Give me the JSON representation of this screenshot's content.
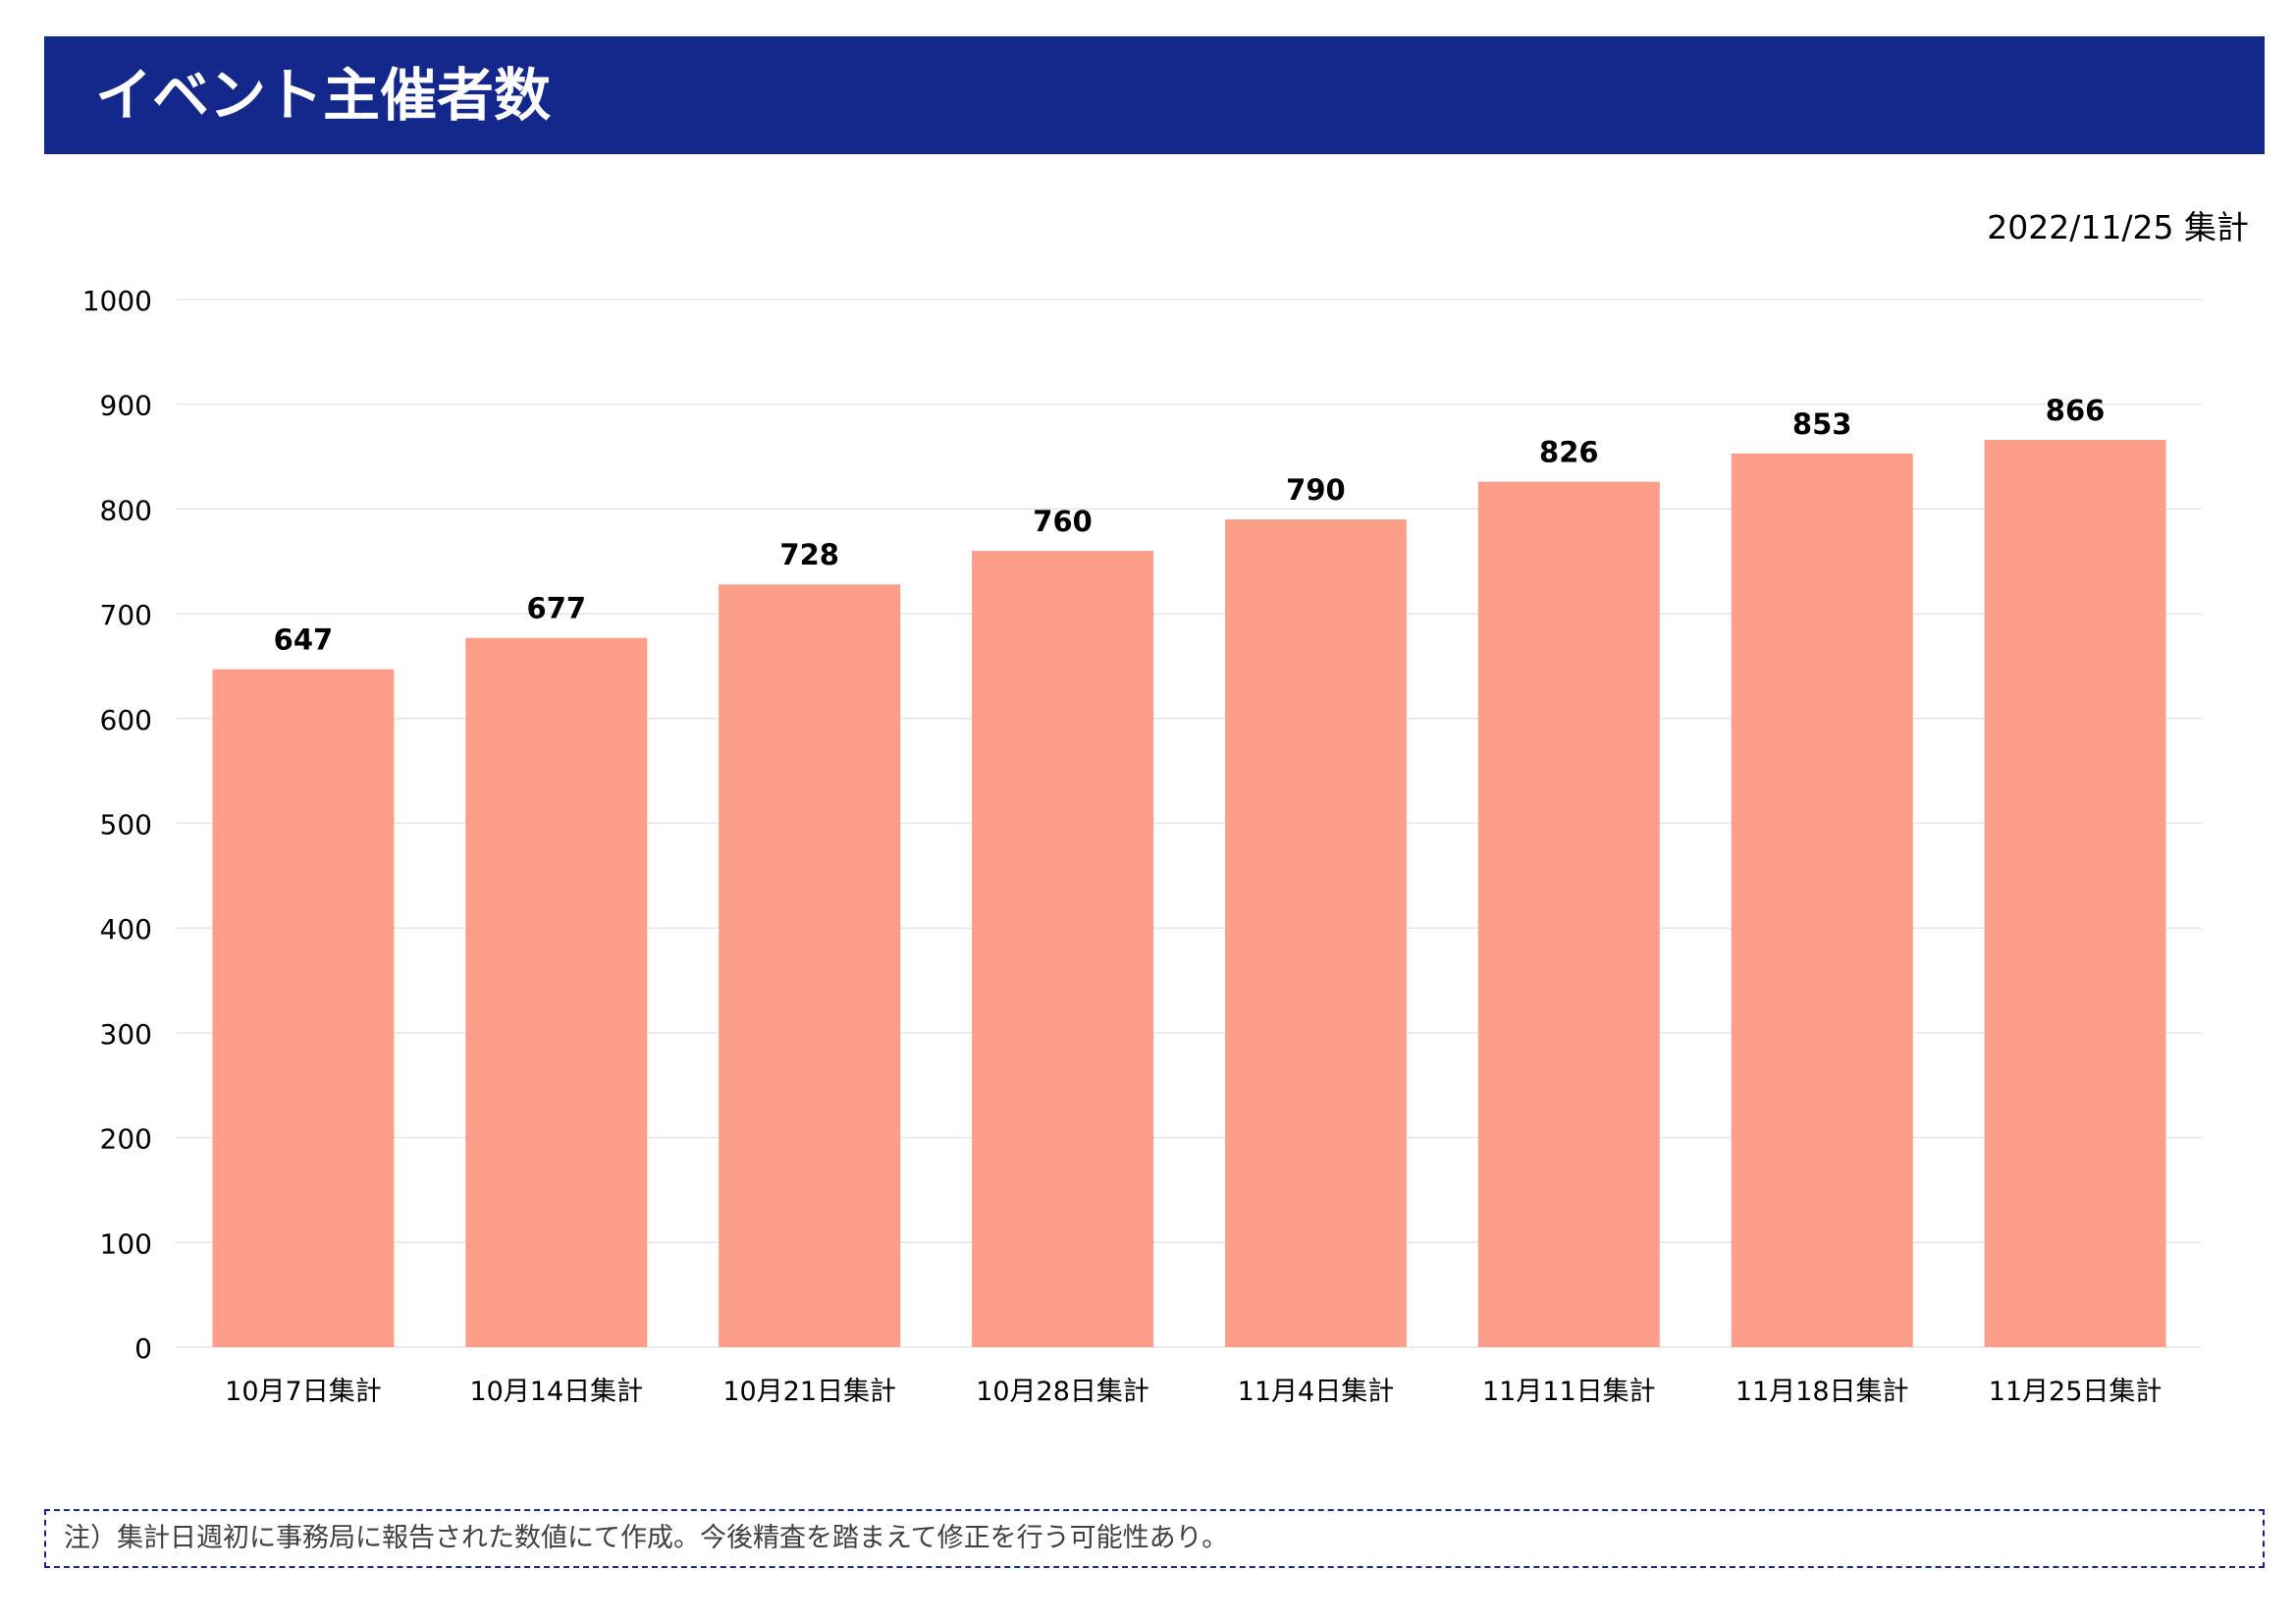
{
  "header": {
    "title": "イベント主催者数"
  },
  "as_of_label": "2022/11/25 集計",
  "note": "注）集計日週初に事務局に報告された数値にて作成。今後精査を踏まえて修正を行う可能性あり。",
  "colors": {
    "header_bg": "#14288c",
    "bar": "#fc9e8a",
    "note_border": "#14288c",
    "gridline": "#e6e6e6"
  },
  "chart_data": {
    "type": "bar",
    "title": "",
    "xlabel": "",
    "ylabel": "",
    "categories": [
      "10月7日集計",
      "10月14日集計",
      "10月21日集計",
      "10月28日集計",
      "11月4日集計",
      "11月11日集計",
      "11月18日集計",
      "11月25日集計"
    ],
    "values": [
      647,
      677,
      728,
      760,
      790,
      826,
      853,
      866
    ],
    "ylim": [
      0,
      1000
    ],
    "yticks": [
      0,
      100,
      200,
      300,
      400,
      500,
      600,
      700,
      800,
      900,
      1000
    ],
    "grid": true,
    "data_labels": true,
    "legend": "none"
  }
}
